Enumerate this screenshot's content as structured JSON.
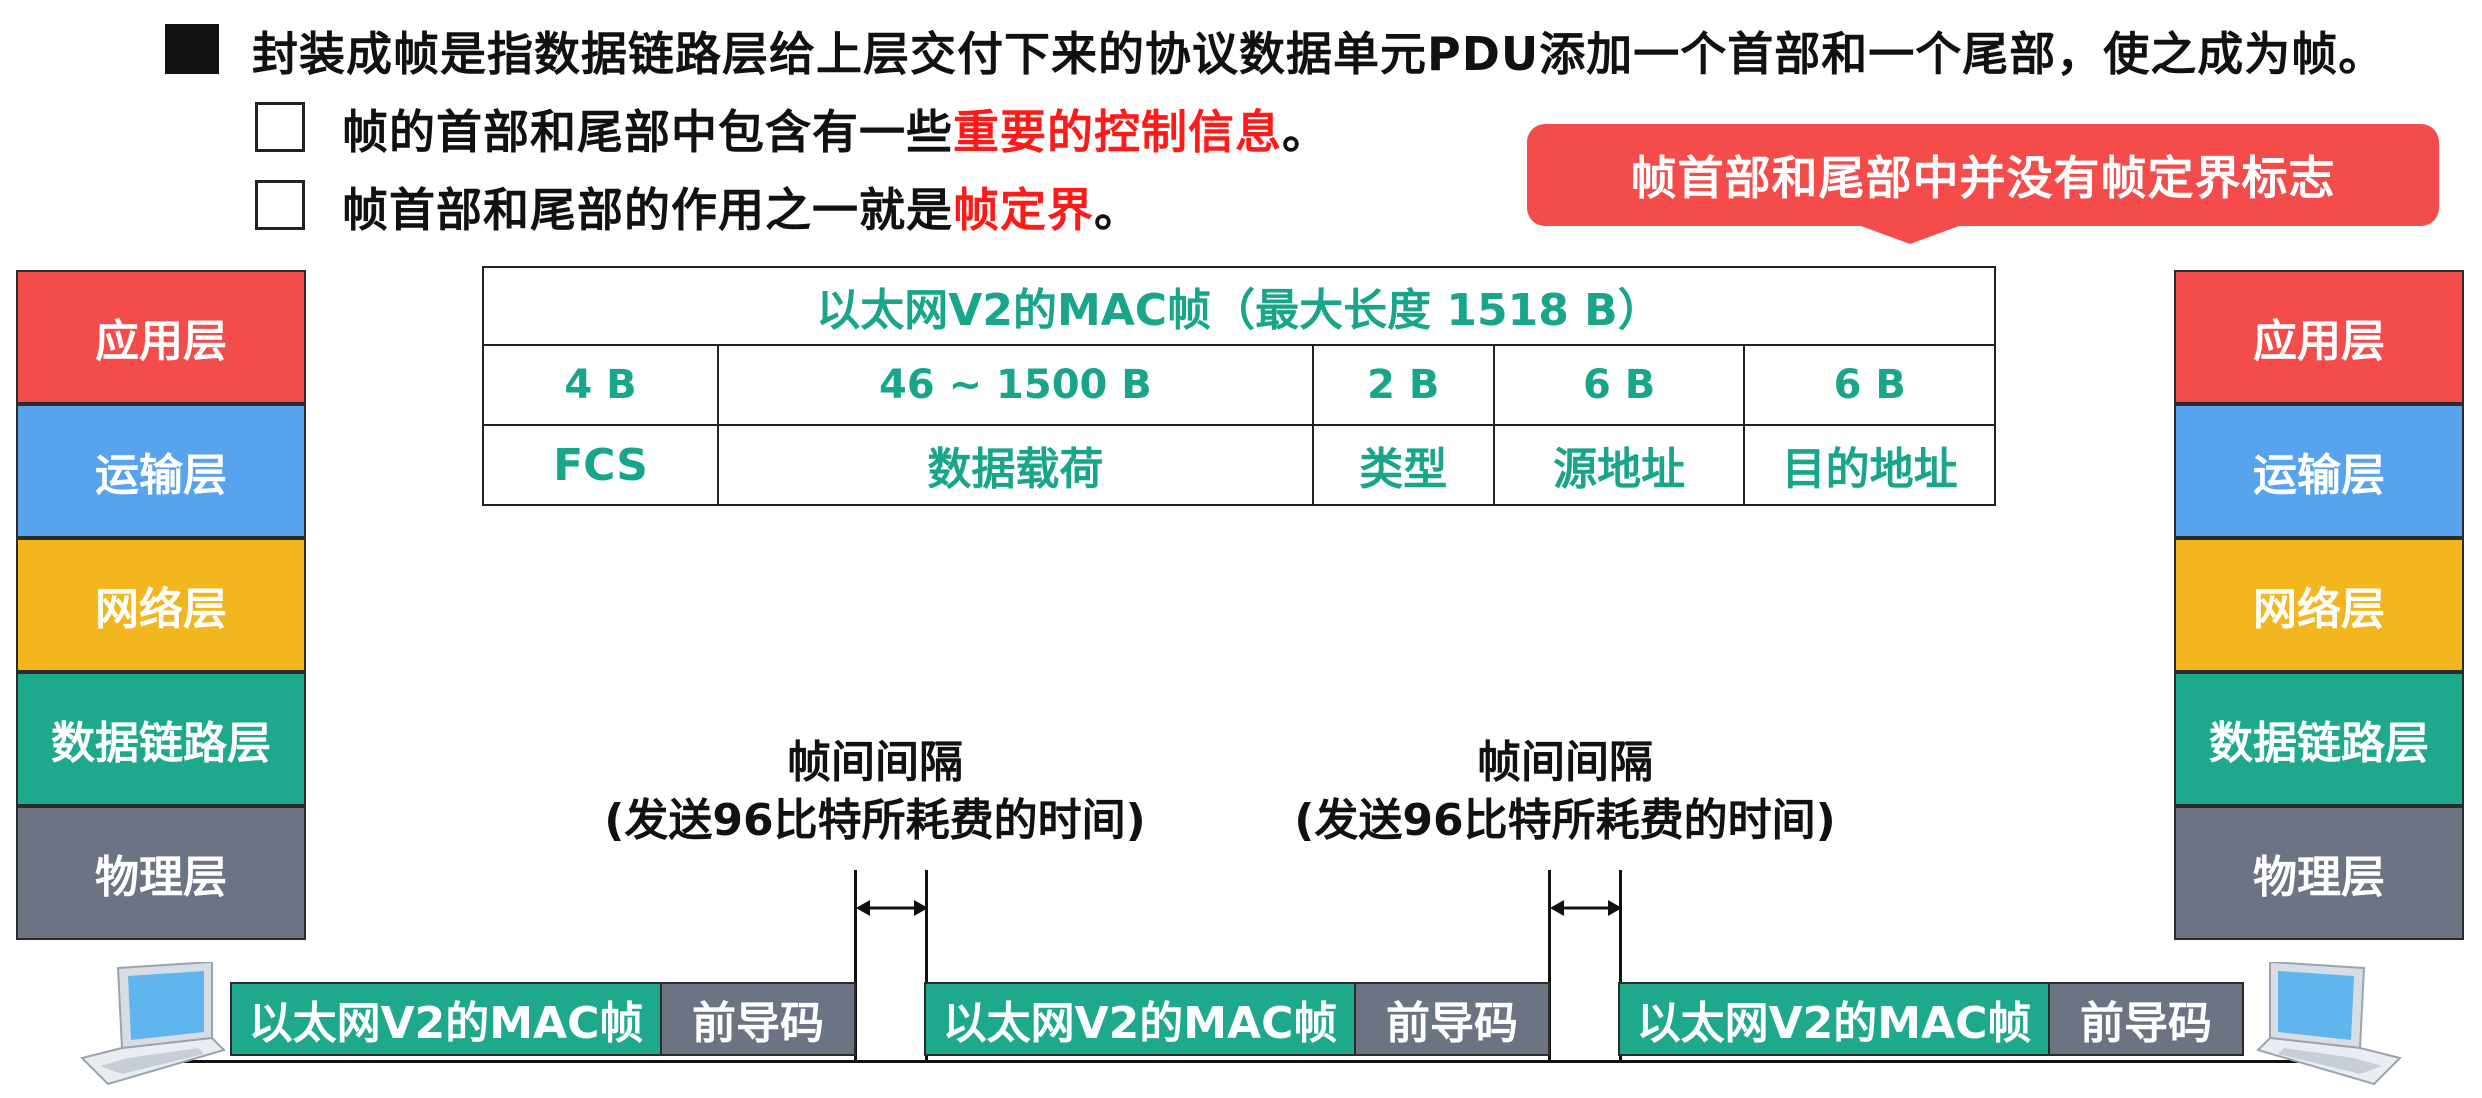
{
  "bullets": {
    "main": {
      "text": "封装成帧是指数据链路层给上层交付下来的协议数据单元PDU添加一个首部和一个尾部，使之成为帧。"
    },
    "sub1": {
      "prefix": "帧的首部和尾部中包含有一些",
      "highlight": "重要的控制信息",
      "suffix": "。"
    },
    "sub2": {
      "prefix": "帧首部和尾部的作用之一就是",
      "highlight": "帧定界",
      "suffix": "。"
    }
  },
  "callout": {
    "text": "帧首部和尾部中并没有帧定界标志"
  },
  "layers": [
    "应用层",
    "运输层",
    "网络层",
    "数据链路层",
    "物理层"
  ],
  "layer_colors": [
    "#f44b4b",
    "#58a3ee",
    "#f2b71e",
    "#1fa98c",
    "#6c7382"
  ],
  "frame_table": {
    "title": "以太网V2的MAC帧（最大长度 1518 B）",
    "sizes": [
      "4 B",
      "46 ~ 1500 B",
      "2 B",
      "6 B",
      "6 B"
    ],
    "fields": [
      "FCS",
      "数据载荷",
      "类型",
      "源地址",
      "目的地址"
    ]
  },
  "gap": {
    "title": "帧间间隔",
    "detail": "(发送96比特所耗费的时间)"
  },
  "transmission": {
    "mac_label": "以太网V2的MAC帧",
    "preamble_label": "前导码"
  },
  "colors": {
    "teal": "#1fa98c",
    "gray": "#6c7382",
    "red": "#ff1a1a",
    "callout": "#f44b4b",
    "table_text": "#18a589"
  }
}
